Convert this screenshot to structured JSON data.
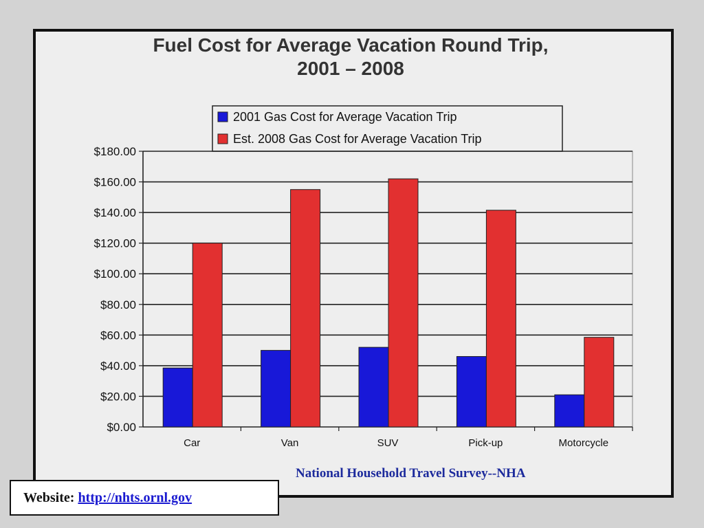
{
  "colors": {
    "series_2001": "#1818d8",
    "series_2008": "#e23030",
    "plot_background": "#eeeeee",
    "gridline": "#222222",
    "source_note": "#1c2a9c",
    "link": "#1a1ad0"
  },
  "chart_data": {
    "type": "bar",
    "title_line1": "Fuel Cost for Average Vacation Round Trip,",
    "title_line2": "2001 – 2008",
    "categories": [
      "Car",
      "Van",
      "SUV",
      "Pick-up",
      "Motorcycle"
    ],
    "series": [
      {
        "name": "2001 Gas Cost for Average Vacation Trip",
        "values": [
          38.5,
          50,
          52,
          46,
          21
        ]
      },
      {
        "name": "Est. 2008 Gas Cost for Average Vacation Trip",
        "values": [
          120,
          155,
          162,
          141.5,
          58.5
        ]
      }
    ],
    "y_ticks": [
      "$0.00",
      "$20.00",
      "$40.00",
      "$60.00",
      "$80.00",
      "$100.00",
      "$120.00",
      "$140.00",
      "$160.00",
      "$180.00"
    ],
    "ylim": [
      0,
      180
    ],
    "grid": true,
    "legend_position": "top-center"
  },
  "source_note": "National Household Travel Survey--NHA",
  "website": {
    "label": "Website:",
    "link_text": "http://nhts.ornl.gov"
  }
}
